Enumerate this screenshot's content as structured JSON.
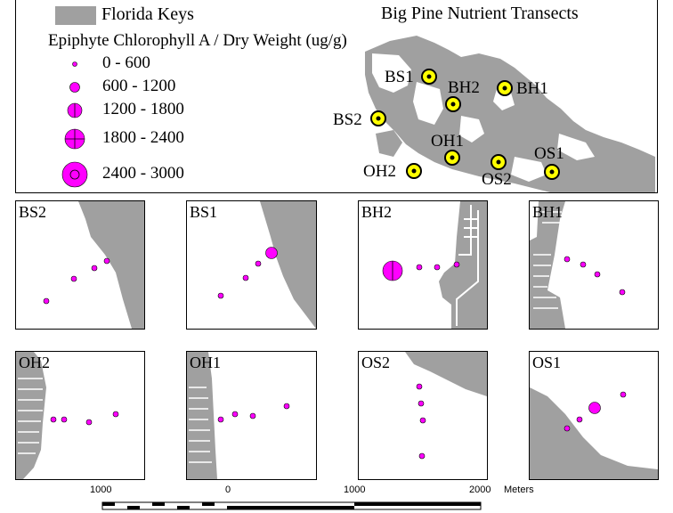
{
  "title": "Big Pine Nutrient Transects",
  "legend": {
    "keys_label": "Florida Keys",
    "chl_title": "Epiphyte Chlorophyll A / Dry Weight (ug/g)",
    "classes": [
      "0 - 600",
      "600 - 1200",
      "1200 - 1800",
      "1800 - 2400",
      "2400 - 3000"
    ]
  },
  "site_labels": {
    "BS1": "BS1",
    "BH2": "BH2",
    "BH1": "BH1",
    "BS2": "BS2",
    "OH1": "OH1",
    "OH2": "OH2",
    "OS2": "OS2",
    "OS1": "OS1"
  },
  "panels": [
    {
      "id": "BS2",
      "label": "BS2",
      "points": [
        1,
        1,
        1,
        1
      ]
    },
    {
      "id": "BS1",
      "label": "BS1",
      "points": [
        1,
        1,
        1,
        2
      ]
    },
    {
      "id": "BH2",
      "label": "BH2",
      "points": [
        4,
        1,
        1,
        1
      ]
    },
    {
      "id": "BH1",
      "label": "BH1",
      "points": [
        1,
        1,
        1,
        1
      ]
    },
    {
      "id": "OH2",
      "label": "OH2",
      "points": [
        1,
        1,
        1,
        1
      ]
    },
    {
      "id": "OH1",
      "label": "OH1",
      "points": [
        1,
        1,
        1,
        1
      ]
    },
    {
      "id": "OS2",
      "label": "OS2",
      "points": [
        1,
        1,
        1,
        1
      ]
    },
    {
      "id": "OS1",
      "label": "OS1",
      "points": [
        1,
        1,
        2,
        1
      ]
    }
  ],
  "scale": {
    "ticks": [
      "1000",
      "0",
      "1000",
      "2000"
    ],
    "units": "Meters"
  },
  "colors": {
    "land": "#a0a0a0",
    "point": "#ff00ff",
    "site_ring": "#ffff00"
  }
}
